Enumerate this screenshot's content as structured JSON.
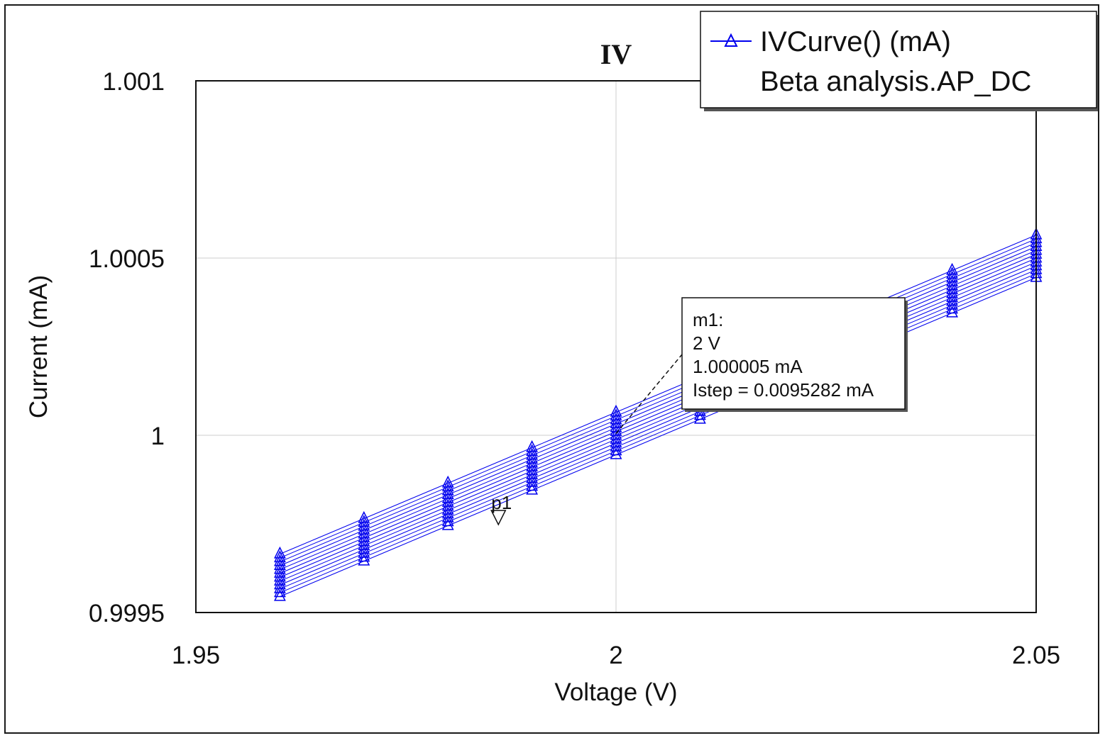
{
  "chart_data": {
    "type": "line",
    "title": "IV",
    "xlabel": "Voltage (V)",
    "ylabel": "Current (mA)",
    "xlim": [
      1.95,
      2.05
    ],
    "ylim": [
      0.9995,
      1.001
    ],
    "xticks": [
      "1.95",
      "2",
      "2.05"
    ],
    "yticks": [
      "0.9995",
      "1",
      "1.0005",
      "1.001"
    ],
    "grid": true,
    "legend": {
      "position": "top-right",
      "series_label": "IVCurve() (mA)",
      "subtitle": "Beta analysis.AP_DC"
    },
    "series_color": "#0000ee",
    "marker_shape": "triangle",
    "sweep_count": 12,
    "slope": 0.01,
    "center": {
      "x": 2.0,
      "y": 1.000005
    },
    "spread": [
      -6e-05,
      6e-05
    ],
    "x": [
      1.96,
      1.97,
      1.98,
      1.99,
      2.0,
      2.01,
      2.02,
      2.03,
      2.04,
      2.05
    ],
    "marker": {
      "name": "m1:",
      "line1": "2 V",
      "line2": "1.000005 mA",
      "line3": "Istep = 0.0095282 mA",
      "x": 2.0,
      "y": 1.000005
    },
    "secondary_marker": {
      "label": "p1",
      "x": 1.986,
      "y": 0.999772
    }
  }
}
